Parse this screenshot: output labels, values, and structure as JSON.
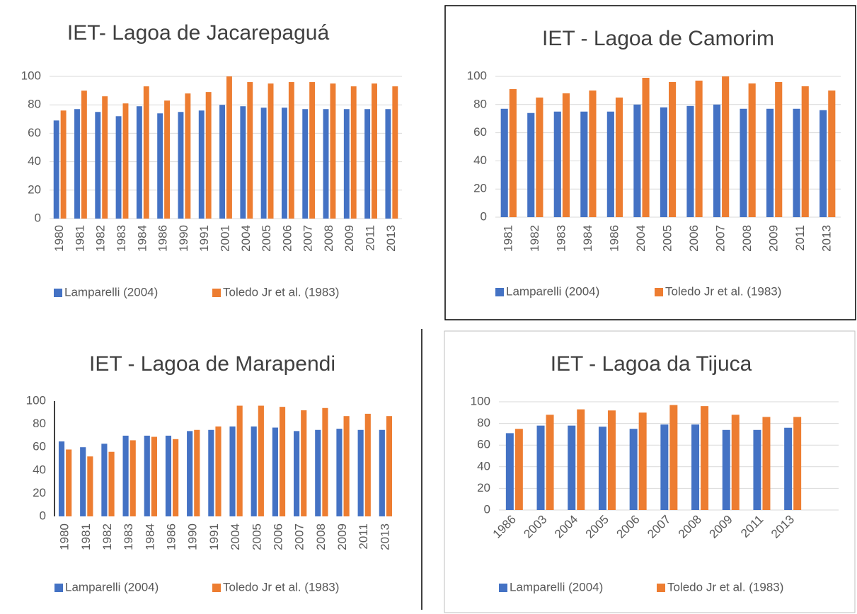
{
  "chart_data": [
    {
      "type": "bar",
      "title": "IET- Lagoa de Jacarepaguá",
      "categories": [
        "1980",
        "1981",
        "1982",
        "1983",
        "1984",
        "1986",
        "1990",
        "1991",
        "2001",
        "2004",
        "2005",
        "2006",
        "2007",
        "2008",
        "2009",
        "2011",
        "2013"
      ],
      "series": [
        {
          "name": "Lamparelli (2004)",
          "color": "#4472c4",
          "values": [
            69,
            77,
            75,
            72,
            79,
            74,
            75,
            76,
            80,
            79,
            78,
            78,
            77,
            77,
            77,
            77,
            77
          ]
        },
        {
          "name": "Toledo Jr et al. (1983)",
          "color": "#ed7d31",
          "values": [
            76,
            90,
            86,
            81,
            93,
            83,
            88,
            89,
            100,
            96,
            95,
            96,
            96,
            95,
            93,
            95,
            93
          ]
        }
      ],
      "ylim": [
        0,
        100
      ],
      "yticks": [
        0,
        20,
        40,
        60,
        80,
        100
      ],
      "grid": true,
      "axis_line": false,
      "legend": "bottom"
    },
    {
      "type": "bar",
      "title": "IET - Lagoa de Camorim",
      "categories": [
        "1981",
        "1982",
        "1983",
        "1984",
        "1986",
        "2004",
        "2005",
        "2006",
        "2007",
        "2008",
        "2009",
        "2011",
        "2013"
      ],
      "series": [
        {
          "name": "Lamparelli (2004)",
          "color": "#4472c4",
          "values": [
            77,
            74,
            75,
            75,
            75,
            80,
            78,
            79,
            80,
            77,
            77,
            77,
            76
          ]
        },
        {
          "name": "Toledo Jr et al. (1983)",
          "color": "#ed7d31",
          "values": [
            91,
            85,
            88,
            90,
            85,
            99,
            96,
            97,
            100,
            95,
            96,
            93,
            90
          ]
        }
      ],
      "ylim": [
        0,
        100
      ],
      "yticks": [
        0,
        20,
        40,
        60,
        80,
        100
      ],
      "grid": true,
      "axis_line": false,
      "legend": "bottom"
    },
    {
      "type": "bar",
      "title": "IET - Lagoa de Marapendi",
      "categories": [
        "1980",
        "1981",
        "1982",
        "1983",
        "1984",
        "1986",
        "1990",
        "1991",
        "2004",
        "2005",
        "2006",
        "2007",
        "2008",
        "2009",
        "2011",
        "2013"
      ],
      "series": [
        {
          "name": "Lamparelli (2004)",
          "color": "#4472c4",
          "values": [
            65,
            60,
            63,
            70,
            70,
            70,
            74,
            75,
            78,
            78,
            77,
            74,
            75,
            76,
            75,
            75
          ]
        },
        {
          "name": "Toledo Jr et al. (1983)",
          "color": "#ed7d31",
          "values": [
            58,
            52,
            56,
            66,
            69,
            67,
            75,
            78,
            96,
            96,
            95,
            92,
            94,
            87,
            89,
            87
          ]
        }
      ],
      "ylim": [
        0,
        100
      ],
      "yticks": [
        0,
        20,
        40,
        60,
        80,
        100
      ],
      "grid": false,
      "axis_line": true,
      "legend": "bottom"
    },
    {
      "type": "bar",
      "title": "IET - Lagoa da Tijuca",
      "categories": [
        "1986",
        "2003",
        "2004",
        "2005",
        "2006",
        "2007",
        "2008",
        "2009",
        "2011",
        "2013"
      ],
      "series": [
        {
          "name": "Lamparelli (2004)",
          "color": "#4472c4",
          "values": [
            71,
            78,
            78,
            77,
            75,
            79,
            79,
            74,
            74,
            76
          ]
        },
        {
          "name": "Toledo Jr et al. (1983)",
          "color": "#ed7d31",
          "values": [
            75,
            88,
            93,
            92,
            90,
            97,
            96,
            88,
            86,
            86
          ]
        }
      ],
      "ylim": [
        0,
        100
      ],
      "yticks": [
        0,
        20,
        40,
        60,
        80,
        100
      ],
      "grid": true,
      "axis_line": false,
      "legend": "bottom"
    }
  ]
}
